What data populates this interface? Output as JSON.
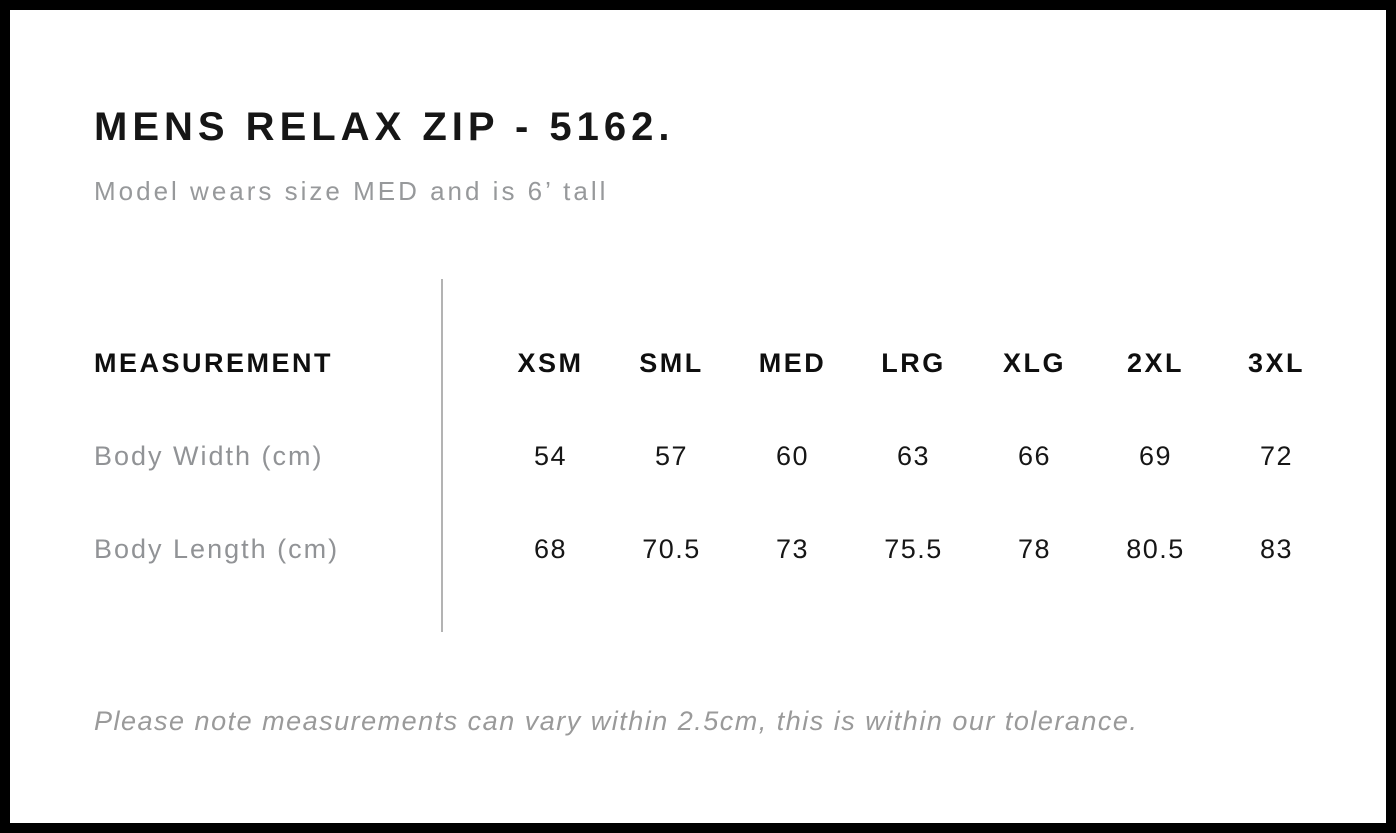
{
  "header": {
    "title": "MENS RELAX ZIP - 5162.",
    "subtitle": "Model wears size MED and is 6’ tall"
  },
  "table": {
    "measurement_label": "MEASUREMENT",
    "size_headers": [
      "XSM",
      "SML",
      "MED",
      "LRG",
      "XLG",
      "2XL",
      "3XL"
    ],
    "rows": [
      {
        "label": "Body Width (cm)",
        "values": [
          "54",
          "57",
          "60",
          "63",
          "66",
          "69",
          "72"
        ]
      },
      {
        "label": "Body Length (cm)",
        "values": [
          "68",
          "70.5",
          "73",
          "75.5",
          "78",
          "80.5",
          "83"
        ]
      }
    ]
  },
  "footer": {
    "note": "Please note measurements can vary within 2.5cm, this is within our tolerance."
  },
  "colors": {
    "frame": "#000000",
    "background": "#ffffff",
    "text_primary": "#161616",
    "text_secondary": "#97999b",
    "divider": "#b3b3b3"
  },
  "chart_data": {
    "type": "table",
    "title": "MENS RELAX ZIP - 5162.",
    "subtitle": "Model wears size MED and is 6’ tall",
    "columns": [
      "MEASUREMENT",
      "XSM",
      "SML",
      "MED",
      "LRG",
      "XLG",
      "2XL",
      "3XL"
    ],
    "rows": [
      [
        "Body Width (cm)",
        54,
        57,
        60,
        63,
        66,
        69,
        72
      ],
      [
        "Body Length (cm)",
        68,
        70.5,
        73,
        75.5,
        78,
        80.5,
        83
      ]
    ],
    "note": "Please note measurements can vary within 2.5cm, this is within our tolerance.",
    "layout": {
      "divider_between_label_and_values": true,
      "gridlines": false
    }
  }
}
